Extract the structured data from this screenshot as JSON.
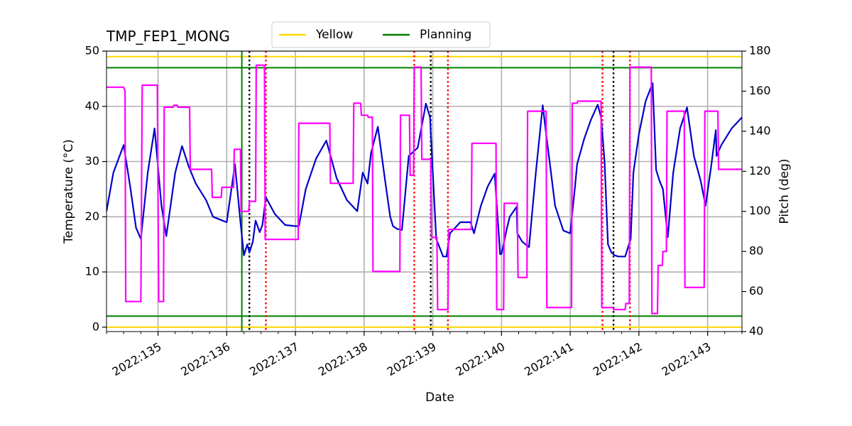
{
  "chart_data": {
    "type": "line",
    "title": "TMP_FEP1_MONG",
    "xlabel": "Date",
    "ylabel": "Temperature ($^\\circ$C)",
    "ylabel_display": "Temperature (°C)",
    "y2label": "Pitch (deg)",
    "xlim": [
      134.25,
      143.5
    ],
    "ylim": [
      -0.8,
      50
    ],
    "y2lim": [
      40,
      180
    ],
    "x_ticks": [
      135,
      136,
      137,
      138,
      139,
      140,
      141,
      142,
      143
    ],
    "x_tick_labels": [
      "2022:135",
      "2022:136",
      "2022:137",
      "2022:138",
      "2022:139",
      "2022:140",
      "2022:141",
      "2022:142",
      "2022:143"
    ],
    "y_ticks": [
      0,
      10,
      20,
      30,
      40,
      50
    ],
    "y2_ticks": [
      40,
      60,
      80,
      100,
      120,
      140,
      160,
      180
    ],
    "grid": true,
    "legend": {
      "placement": "top-center",
      "entries": [
        {
          "name": "Yellow",
          "color": "#ffd700"
        },
        {
          "name": "Planning",
          "color": "#008000"
        }
      ]
    },
    "limits": [
      {
        "name": "Yellow",
        "values": [
          49,
          0
        ],
        "color": "#ffd700"
      },
      {
        "name": "Planning",
        "values": [
          47,
          2
        ],
        "color": "#008000"
      }
    ],
    "vertical_lines": [
      {
        "x": 136.22,
        "color": "#008000",
        "style": "solid"
      },
      {
        "x": 136.33,
        "color": "#000000",
        "style": "dotted"
      },
      {
        "x": 136.57,
        "color": "#ff0000",
        "style": "dotted"
      },
      {
        "x": 138.73,
        "color": "#ff0000",
        "style": "dotted"
      },
      {
        "x": 138.97,
        "color": "#000000",
        "style": "dotted"
      },
      {
        "x": 139.22,
        "color": "#ff0000",
        "style": "dotted"
      },
      {
        "x": 141.47,
        "color": "#ff0000",
        "style": "dotted"
      },
      {
        "x": 141.63,
        "color": "#000000",
        "style": "dotted"
      },
      {
        "x": 141.87,
        "color": "#ff0000",
        "style": "dotted"
      }
    ],
    "series": [
      {
        "axis": "left",
        "color": "#0000cc",
        "x": [
          134.25,
          134.35,
          134.5,
          134.6,
          134.68,
          134.75,
          134.85,
          134.95,
          135.05,
          135.12,
          135.25,
          135.35,
          135.45,
          135.55,
          135.7,
          135.8,
          135.9,
          136.0,
          136.12,
          136.2,
          136.25,
          136.3,
          136.33,
          136.38,
          136.42,
          136.48,
          136.52,
          136.57,
          136.7,
          136.85,
          137.0,
          137.05,
          137.15,
          137.3,
          137.45,
          137.6,
          137.75,
          137.9,
          137.98,
          138.05,
          138.1,
          138.2,
          138.3,
          138.38,
          138.42,
          138.48,
          138.55,
          138.65,
          138.78,
          138.9,
          138.96,
          139.0,
          139.05,
          139.15,
          139.2,
          139.25,
          139.4,
          139.55,
          139.6,
          139.7,
          139.8,
          139.9,
          139.98,
          140.0,
          140.08,
          140.12,
          140.22,
          140.23,
          140.3,
          140.4,
          140.5,
          140.6,
          140.65,
          140.7,
          140.78,
          140.9,
          141.0,
          141.07,
          141.1,
          141.2,
          141.3,
          141.4,
          141.45,
          141.5,
          141.55,
          141.6,
          141.65,
          141.7,
          141.8,
          141.88,
          141.92,
          142.0,
          142.1,
          142.2,
          142.25,
          142.3,
          142.35,
          142.42,
          142.5,
          142.6,
          142.7,
          142.8,
          142.9,
          142.97,
          143.05,
          143.12,
          143.13,
          143.2,
          143.35,
          143.5
        ],
        "y": [
          21,
          28,
          33,
          25,
          18,
          16,
          28,
          36,
          22,
          16.5,
          28,
          32.8,
          29,
          26,
          23,
          20,
          19.5,
          19,
          29.5,
          19,
          13,
          15,
          13.5,
          15.5,
          19.3,
          17.2,
          18.5,
          23.5,
          20.5,
          18.5,
          18.3,
          18.3,
          25,
          30.5,
          33.8,
          27,
          23,
          21,
          28,
          26,
          31.5,
          36.3,
          27,
          20,
          18.3,
          17.8,
          17.6,
          31,
          32.5,
          40.5,
          38,
          28,
          16,
          12.8,
          12.8,
          17,
          19,
          19,
          17,
          22,
          25.5,
          27.8,
          13.2,
          13.3,
          18,
          20,
          21.8,
          17,
          15.5,
          14.5,
          28,
          40.2,
          35,
          30,
          22,
          17.5,
          17,
          25.5,
          29.5,
          34,
          37.5,
          40.3,
          38,
          30,
          15,
          13.5,
          13,
          12.8,
          12.8,
          16,
          28,
          35,
          41,
          44.2,
          28.5,
          26.5,
          25,
          16.3,
          28,
          36,
          39.8,
          31,
          26.5,
          22,
          29,
          35.7,
          31,
          33,
          36,
          38
        ]
      },
      {
        "axis": "right",
        "color": "#ff00ff",
        "x": [
          134.25,
          134.5,
          134.52,
          134.53,
          134.75,
          134.77,
          134.99,
          135.01,
          135.08,
          135.09,
          135.22,
          135.23,
          135.28,
          135.29,
          135.46,
          135.47,
          135.78,
          135.79,
          135.92,
          135.93,
          136.1,
          136.11,
          136.2,
          136.21,
          136.32,
          136.33,
          136.42,
          136.43,
          136.55,
          136.56,
          137.04,
          137.05,
          137.5,
          137.51,
          137.84,
          137.85,
          137.95,
          137.96,
          138.05,
          138.06,
          138.12,
          138.13,
          138.52,
          138.53,
          138.66,
          138.67,
          138.72,
          138.73,
          138.83,
          138.84,
          138.97,
          138.98,
          139.06,
          139.07,
          139.22,
          139.23,
          139.56,
          139.57,
          139.92,
          139.93,
          140.03,
          140.04,
          140.23,
          140.24,
          140.37,
          140.38,
          140.65,
          140.66,
          141.02,
          141.03,
          141.1,
          141.11,
          141.45,
          141.46,
          141.62,
          141.63,
          141.8,
          141.81,
          141.86,
          141.87,
          142.18,
          142.19,
          142.27,
          142.28,
          142.34,
          142.35,
          142.4,
          142.41,
          142.66,
          142.67,
          142.95,
          142.96,
          143.15,
          143.16,
          143.5
        ],
        "y": [
          162,
          162,
          160,
          55,
          55,
          163,
          163,
          55,
          55,
          152,
          152,
          153,
          153,
          152,
          152,
          121,
          121,
          107,
          107,
          112,
          112,
          131,
          131,
          100,
          100,
          105,
          105,
          173,
          173,
          86,
          86,
          144,
          144,
          114,
          114,
          154,
          154,
          148,
          148,
          147,
          147,
          70,
          70,
          148,
          148,
          118,
          118,
          172,
          172,
          126,
          126,
          87,
          87,
          51,
          51,
          91,
          91,
          134,
          134,
          51,
          51,
          104,
          104,
          67,
          67,
          150,
          150,
          52,
          52,
          154,
          154,
          155,
          155,
          52,
          52,
          51,
          51,
          54,
          54,
          172,
          172,
          49,
          49,
          73,
          73,
          80,
          80,
          150,
          150,
          62,
          62,
          150,
          150,
          121,
          121
        ]
      }
    ]
  }
}
